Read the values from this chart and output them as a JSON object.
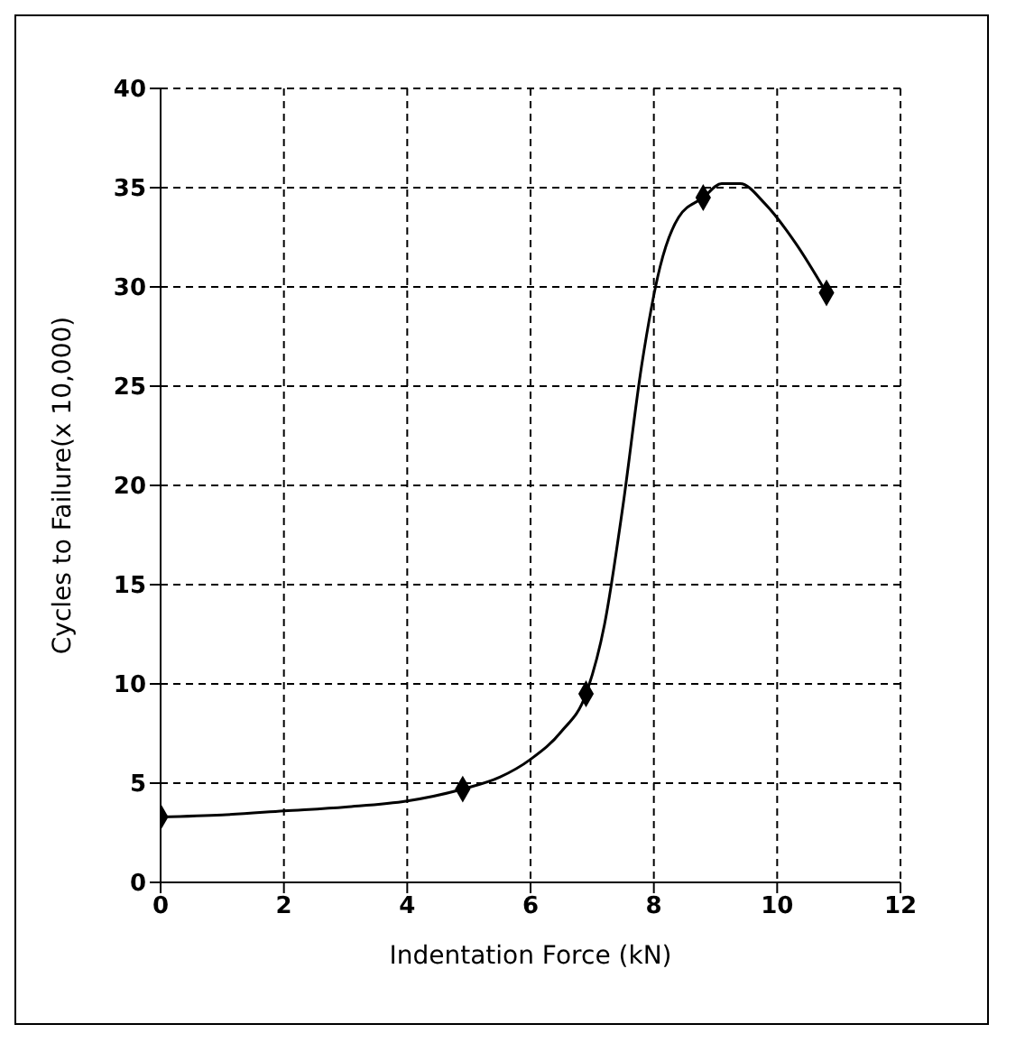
{
  "chart_data": {
    "type": "scatter",
    "xlabel": "Indentation Force (kN)",
    "ylabel": "Cycles to Failure(x 10,000)",
    "xlim": [
      0,
      12
    ],
    "xticks": [
      0,
      2,
      4,
      6,
      8,
      10,
      12
    ],
    "ylim": [
      0,
      40
    ],
    "yticks": [
      0,
      5,
      10,
      15,
      20,
      25,
      30,
      35,
      40
    ],
    "grid": true,
    "series": [
      {
        "type": "line",
        "marker": "none",
        "color": "#000000",
        "x": [
          0,
          1,
          2,
          3,
          4,
          4.9,
          5.5,
          6,
          6.5,
          6.9,
          7.2,
          7.5,
          7.8,
          8.1,
          8.4,
          8.8,
          9.1,
          9.4,
          9.8,
          10.3,
          10.8
        ],
        "values": [
          3.3,
          3.4,
          3.6,
          3.8,
          4.1,
          4.7,
          5.3,
          6.2,
          7.6,
          9.5,
          13,
          19,
          26,
          31,
          33.5,
          34.5,
          35.2,
          35.2,
          34.2,
          32.2,
          29.7
        ]
      },
      {
        "marker": "diamond",
        "color": "#000000",
        "x": [
          0,
          4.9,
          6.9,
          8.8,
          10.8
        ],
        "values": [
          3.3,
          4.7,
          9.5,
          34.5,
          29.7
        ]
      }
    ]
  }
}
